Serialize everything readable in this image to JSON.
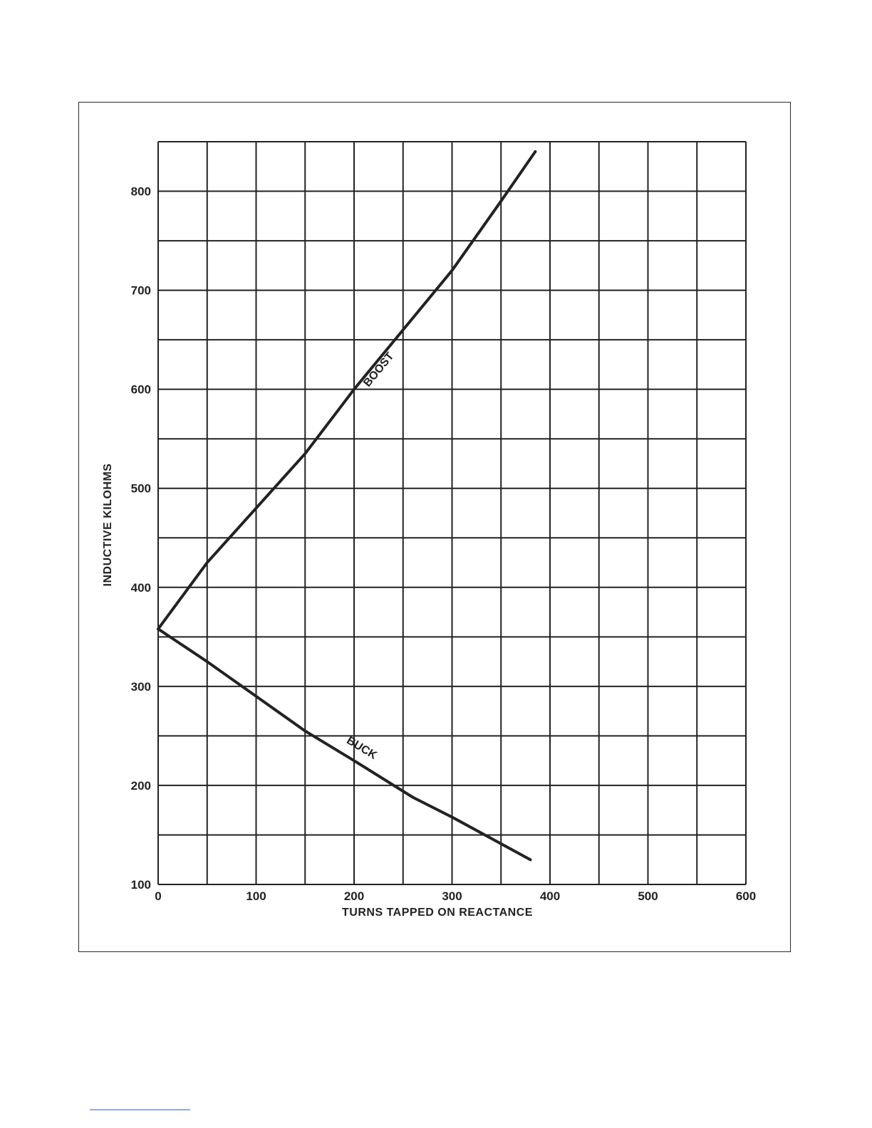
{
  "chart_data": {
    "type": "line",
    "title": "",
    "xlabel": "TURNS TAPPED ON REACTANCE",
    "ylabel": "INDUCTIVE KILOHMS",
    "xlim": [
      0,
      600
    ],
    "ylim": [
      100,
      850
    ],
    "x_ticks": [
      0,
      100,
      200,
      300,
      400,
      500,
      600
    ],
    "x_tick_labels": [
      "0",
      "100",
      "200",
      "300",
      "400",
      "500",
      "600"
    ],
    "y_ticks": [
      100,
      200,
      300,
      400,
      500,
      600,
      700,
      800
    ],
    "y_tick_labels": [
      "100",
      "200",
      "300",
      "400",
      "500",
      "600",
      "700",
      "800"
    ],
    "grid": true,
    "grid_x_step": 50,
    "grid_y_step": 50,
    "series": [
      {
        "name": "BOOST",
        "x": [
          0,
          50,
          100,
          150,
          200,
          250,
          300,
          350,
          385
        ],
        "y": [
          358,
          425,
          480,
          535,
          600,
          660,
          720,
          790,
          840
        ]
      },
      {
        "name": "BUCK",
        "x": [
          0,
          50,
          100,
          150,
          200,
          260,
          300,
          380
        ],
        "y": [
          358,
          325,
          290,
          255,
          225,
          188,
          168,
          125
        ]
      }
    ]
  },
  "colors": {
    "ink": "#222222",
    "frame": "#2a2a2a",
    "footer_rule": "#3a5fcd"
  }
}
